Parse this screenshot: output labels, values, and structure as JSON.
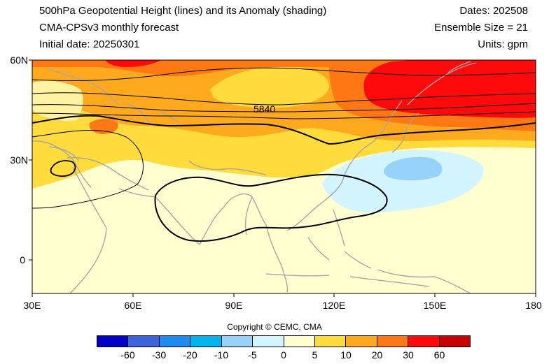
{
  "header": {
    "title": "500hPa Geopotential Height (lines) and its Anomaly (shading)",
    "model": "CMA-CPSv3 monthly forecast",
    "init_date": "Initial date: 20250301",
    "dates": "Dates: 202508",
    "ensemble": "Ensemble Size = 21",
    "units": "Units: gpm"
  },
  "map": {
    "contour_label": "5840",
    "lat_labels": [
      "60N",
      "30N",
      "0"
    ],
    "lon_labels": [
      "30E",
      "60E",
      "90E",
      "120E",
      "150E",
      "180"
    ],
    "extent": {
      "lon": [
        30,
        180
      ],
      "lat": [
        -10,
        60
      ]
    },
    "coastline_color": "#a6a6a6"
  },
  "copyright": "Copyright © CEMC, CMA",
  "legend": {
    "colors": [
      "#0000c8",
      "#3c64dc",
      "#1e8cf0",
      "#00b4f0",
      "#96d2fa",
      "#d2f5ff",
      "#ffffd0",
      "#ffdc3c",
      "#ffaa1e",
      "#ff7814",
      "#ff0a0a",
      "#c80000"
    ],
    "labels": [
      "-60",
      "-30",
      "-20",
      "-10",
      "-5",
      "0",
      "5",
      "10",
      "20",
      "30",
      "60"
    ]
  }
}
